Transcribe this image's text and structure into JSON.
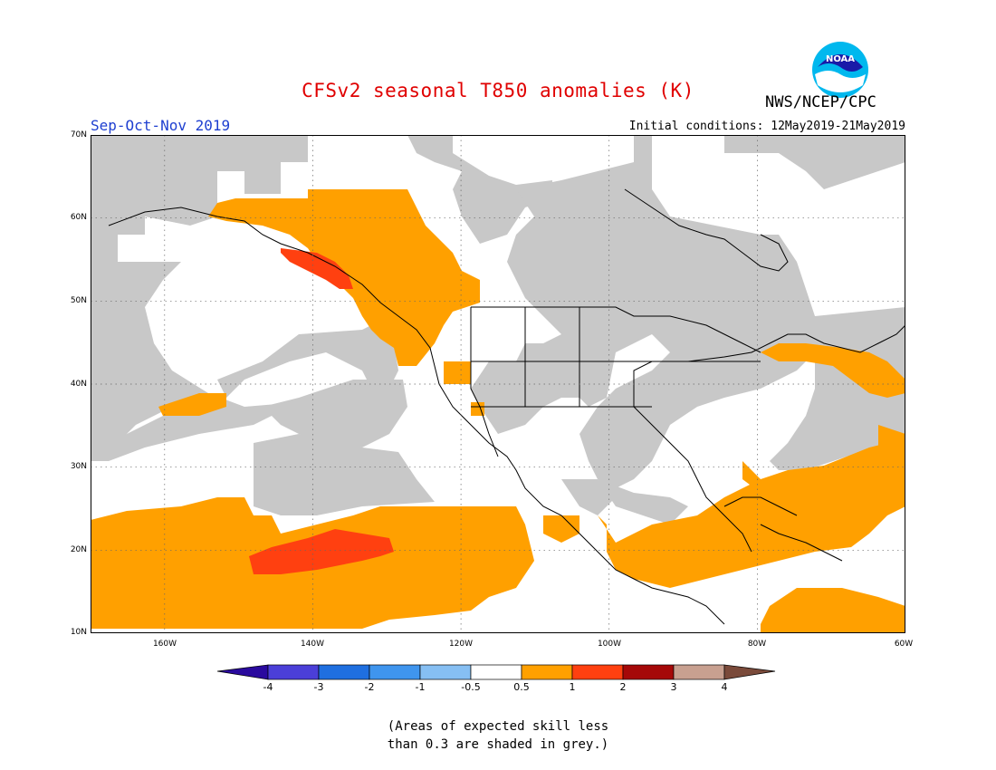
{
  "title": "CFSv2 seasonal T850 anomalies (K)",
  "agency": "NWS/NCEP/CPC",
  "logo_text": "NOAA",
  "season": "Sep-Oct-Nov 2019",
  "initial_conditions": "Initial conditions: 12May2019-21May2019",
  "lat_labels": [
    "70N",
    "60N",
    "50N",
    "40N",
    "30N",
    "20N",
    "10N"
  ],
  "lon_labels": [
    "160W",
    "140W",
    "120W",
    "100W",
    "80W",
    "60W"
  ],
  "colorbar": {
    "ticks": [
      "-4",
      "-3",
      "-2",
      "-1",
      "-0.5",
      "0.5",
      "1",
      "2",
      "3",
      "4"
    ],
    "colors": [
      "#2a0a9e",
      "#4b3fd8",
      "#1f6fe0",
      "#3f95ee",
      "#86bff3",
      "#ffffff",
      "#ffa000",
      "#ff4010",
      "#a50808",
      "#c8a090",
      "#7a4a3a"
    ],
    "skill_grey": "#c8c8c8"
  },
  "note_lines": [
    "(Areas of expected skill less",
    "than 0.3 are shaded in grey.)"
  ]
}
